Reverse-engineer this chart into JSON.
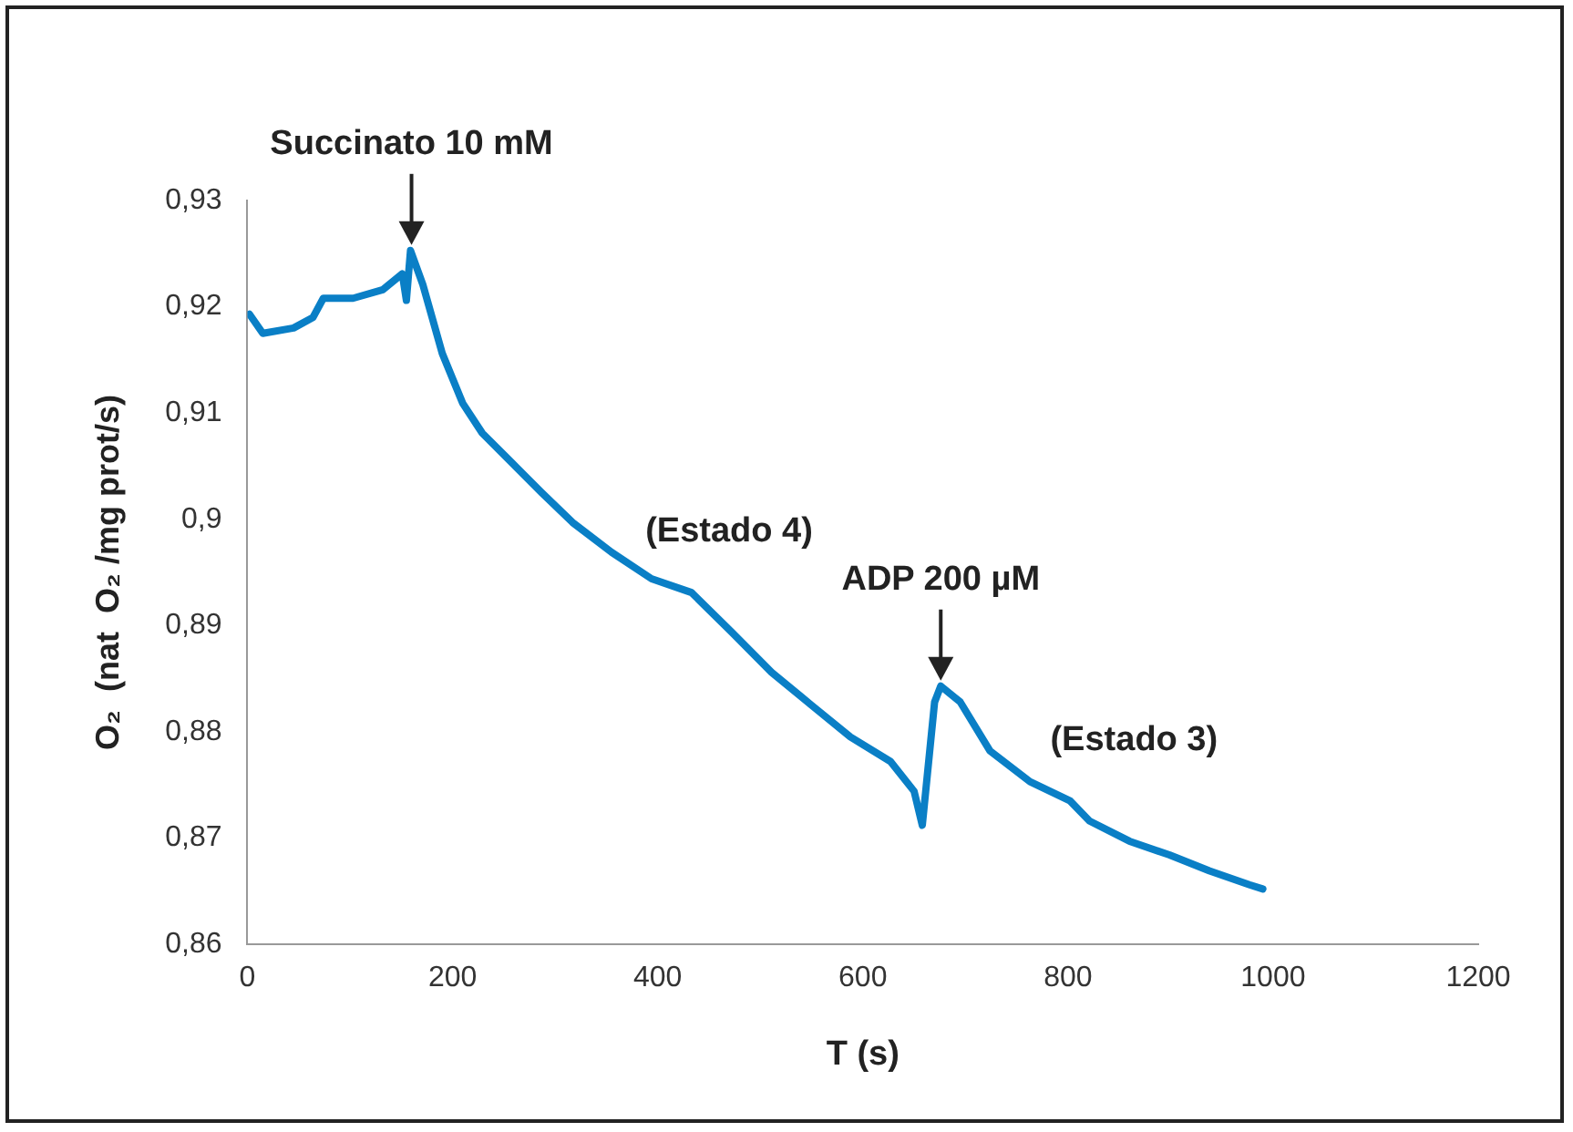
{
  "chart_data": {
    "type": "line",
    "xlabel": "T (s)",
    "ylabel": "O₂  (nat  O₂ /mg prot/s)",
    "xlim": [
      0,
      1200
    ],
    "xticks": [
      0,
      200,
      400,
      600,
      800,
      1000,
      1200
    ],
    "ylim": [
      0.86,
      0.93
    ],
    "yticks": [
      {
        "value": 0.86,
        "label": "0,86"
      },
      {
        "value": 0.87,
        "label": "0,87"
      },
      {
        "value": 0.88,
        "label": "0,88"
      },
      {
        "value": 0.89,
        "label": "0,89"
      },
      {
        "value": 0.9,
        "label": "0,9"
      },
      {
        "value": 0.91,
        "label": "0,91"
      },
      {
        "value": 0.92,
        "label": "0,92"
      },
      {
        "value": 0.93,
        "label": "0,93"
      }
    ],
    "grid": false,
    "legend": false,
    "marker": "none",
    "line_style": "solid",
    "series": [
      {
        "color": "#0a7fc6",
        "x": [
          2,
          15,
          45,
          64,
          74,
          103,
          132,
          151,
          155,
          159,
          171,
          190,
          210,
          229,
          258,
          287,
          317,
          355,
          394,
          433,
          472,
          511,
          550,
          588,
          627,
          650,
          658,
          670,
          676,
          695,
          724,
          763,
          802,
          821,
          860,
          899,
          938,
          977,
          990
        ],
        "values": [
          0.9193,
          0.9175,
          0.918,
          0.919,
          0.9208,
          0.9208,
          0.9216,
          0.9231,
          0.9206,
          0.9253,
          0.9221,
          0.9156,
          0.9109,
          0.9081,
          0.9053,
          0.9025,
          0.8997,
          0.8969,
          0.8944,
          0.8931,
          0.8894,
          0.8856,
          0.8825,
          0.8795,
          0.8772,
          0.8744,
          0.8712,
          0.8828,
          0.8843,
          0.8828,
          0.8782,
          0.8753,
          0.8735,
          0.8716,
          0.8697,
          0.8684,
          0.8669,
          0.8656,
          0.8652
        ]
      }
    ],
    "annotations": [
      {
        "text": "Succinato 10 mM",
        "x": 160,
        "y": 0.9253
      },
      "(Estado 4)",
      {
        "text": "ADP 200 µM",
        "x": 676,
        "y": 0.8843
      },
      "(Estado 3)"
    ]
  }
}
